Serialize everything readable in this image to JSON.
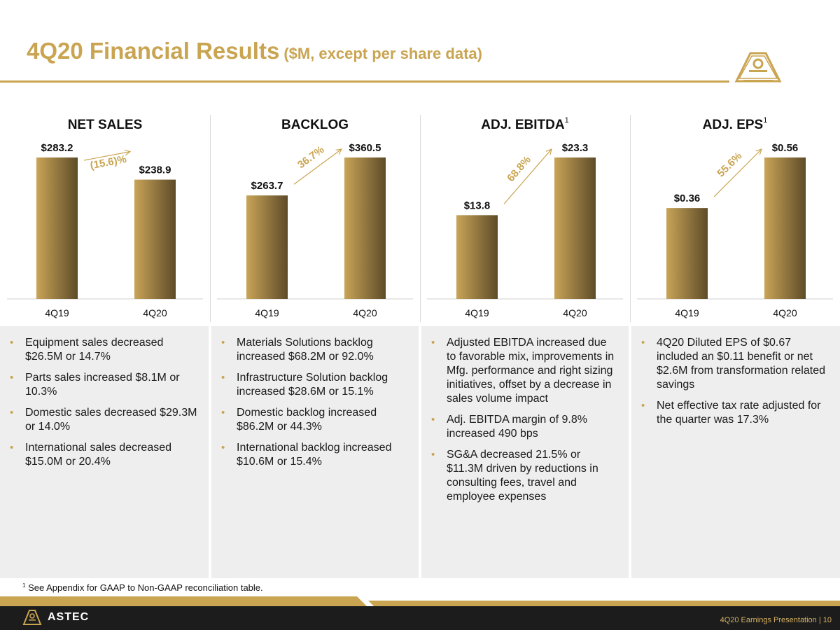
{
  "title": {
    "main": "4Q20 Financial Results",
    "sub": "($M, except per share data)"
  },
  "colors": {
    "gold": "#c9a451",
    "bar_light": "#c8a457",
    "bar_dark": "#5e4b28",
    "panel_bg": "#eeeeee"
  },
  "chart_data": [
    {
      "type": "bar",
      "title": "NET SALES",
      "footnote_marker": "",
      "categories": [
        "4Q19",
        "4Q20"
      ],
      "values": [
        283.2,
        238.9
      ],
      "labels": [
        "$283.2",
        "$238.9"
      ],
      "change": "(15.6)%",
      "direction": "down",
      "ylim": [
        0,
        283.2
      ]
    },
    {
      "type": "bar",
      "title": "BACKLOG",
      "footnote_marker": "",
      "categories": [
        "4Q19",
        "4Q20"
      ],
      "values": [
        263.7,
        360.5
      ],
      "labels": [
        "$263.7",
        "$360.5"
      ],
      "change": "36.7%",
      "direction": "up",
      "ylim": [
        0,
        360.5
      ]
    },
    {
      "type": "bar",
      "title": "ADJ. EBITDA",
      "footnote_marker": "1",
      "categories": [
        "4Q19",
        "4Q20"
      ],
      "values": [
        13.8,
        23.3
      ],
      "labels": [
        "$13.8",
        "$23.3"
      ],
      "change": "68.8%",
      "direction": "up",
      "ylim": [
        0,
        23.3
      ]
    },
    {
      "type": "bar",
      "title": "ADJ. EPS",
      "footnote_marker": "1",
      "categories": [
        "4Q19",
        "4Q20"
      ],
      "values": [
        0.36,
        0.56
      ],
      "labels": [
        "$0.36",
        "$0.56"
      ],
      "change": "55.6%",
      "direction": "up",
      "ylim": [
        0,
        0.56
      ]
    }
  ],
  "bullets": [
    [
      "Equipment sales decreased $26.5M or 14.7%",
      "Parts sales increased $8.1M or 10.3%",
      "Domestic sales decreased $29.3M or 14.0%",
      "International sales decreased $15.0M or 20.4%"
    ],
    [
      "Materials Solutions backlog increased $68.2M or 92.0%",
      "Infrastructure Solution backlog increased $28.6M or 15.1%",
      "Domestic backlog increased $86.2M or 44.3%",
      "International backlog increased $10.6M or 15.4%"
    ],
    [
      "Adjusted EBITDA increased due to favorable mix, improvements in Mfg. performance and right sizing initiatives, offset by a decrease in sales volume impact",
      "Adj. EBITDA margin of 9.8% increased 490 bps",
      "SG&A decreased 21.5% or $11.3M driven by reductions in consulting fees, travel and employee expenses"
    ],
    [
      "4Q20 Diluted EPS of $0.67 included an $0.11 benefit or net $2.6M from transformation related savings",
      "Net effective tax rate adjusted for the quarter was 17.3%"
    ]
  ],
  "footnote": {
    "marker": "1",
    "text": "See Appendix for GAAP to Non-GAAP reconciliation table."
  },
  "footer": {
    "brand": "ASTEC",
    "right_text": "4Q20 Earnings Presentation |  10"
  }
}
